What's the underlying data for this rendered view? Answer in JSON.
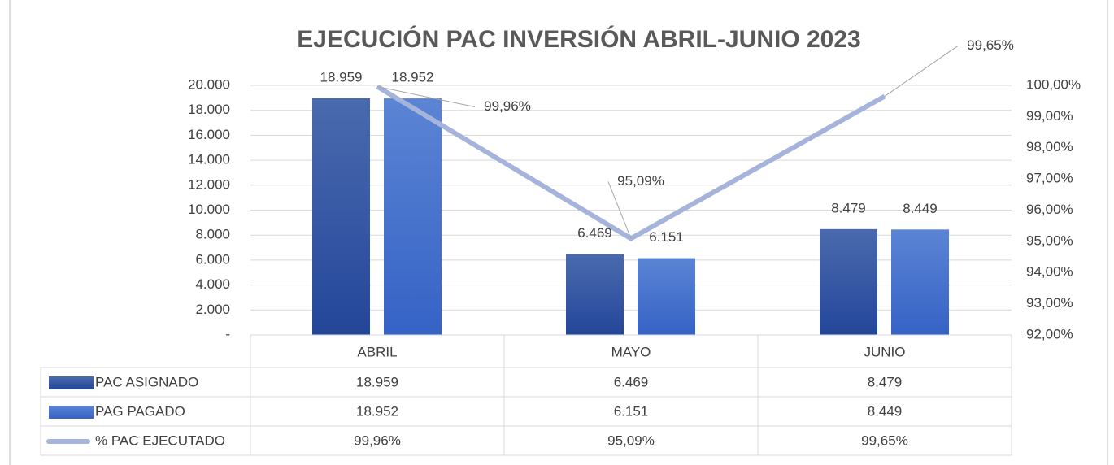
{
  "chart_data": {
    "type": "bar",
    "title": "EJECUCIÓN PAC INVERSIÓN ABRIL-JUNIO 2023",
    "categories": [
      "ABRIL",
      "MAYO",
      "JUNIO"
    ],
    "series": [
      {
        "name": "PAC ASIGNADO",
        "color": "#2f509c",
        "values": [
          18959,
          6469,
          8479
        ],
        "value_labels": [
          "18.959",
          "6.469",
          "8.479"
        ]
      },
      {
        "name": "PAG PAGADO",
        "color": "#4472c8",
        "values": [
          18952,
          6151,
          8449
        ],
        "value_labels": [
          "18.952",
          "6.151",
          "8.449"
        ]
      },
      {
        "name": "% PAC EJECUTADO",
        "type": "line",
        "axis": "y2",
        "color": "#a6b4dc",
        "values": [
          99.96,
          95.09,
          99.65
        ],
        "value_labels": [
          "99,96%",
          "95,09%",
          "99,65%"
        ]
      }
    ],
    "ylim": [
      0,
      20000
    ],
    "yticks": [
      {
        "value": 0,
        "label": "-"
      },
      {
        "value": 2000,
        "label": "2.000"
      },
      {
        "value": 4000,
        "label": "4.000"
      },
      {
        "value": 6000,
        "label": "6.000"
      },
      {
        "value": 8000,
        "label": "8.000"
      },
      {
        "value": 10000,
        "label": "10.000"
      },
      {
        "value": 12000,
        "label": "12.000"
      },
      {
        "value": 14000,
        "label": "14.000"
      },
      {
        "value": 16000,
        "label": "16.000"
      },
      {
        "value": 18000,
        "label": "18.000"
      },
      {
        "value": 20000,
        "label": "20.000"
      }
    ],
    "y2lim": [
      92,
      100
    ],
    "y2ticks": [
      {
        "value": 92,
        "label": "92,00%"
      },
      {
        "value": 93,
        "label": "93,00%"
      },
      {
        "value": 94,
        "label": "94,00%"
      },
      {
        "value": 95,
        "label": "95,00%"
      },
      {
        "value": 96,
        "label": "96,00%"
      },
      {
        "value": 97,
        "label": "97,00%"
      },
      {
        "value": 98,
        "label": "98,00%"
      },
      {
        "value": 99,
        "label": "99,00%"
      },
      {
        "value": 100,
        "label": "100,00%"
      }
    ],
    "grid": true
  }
}
